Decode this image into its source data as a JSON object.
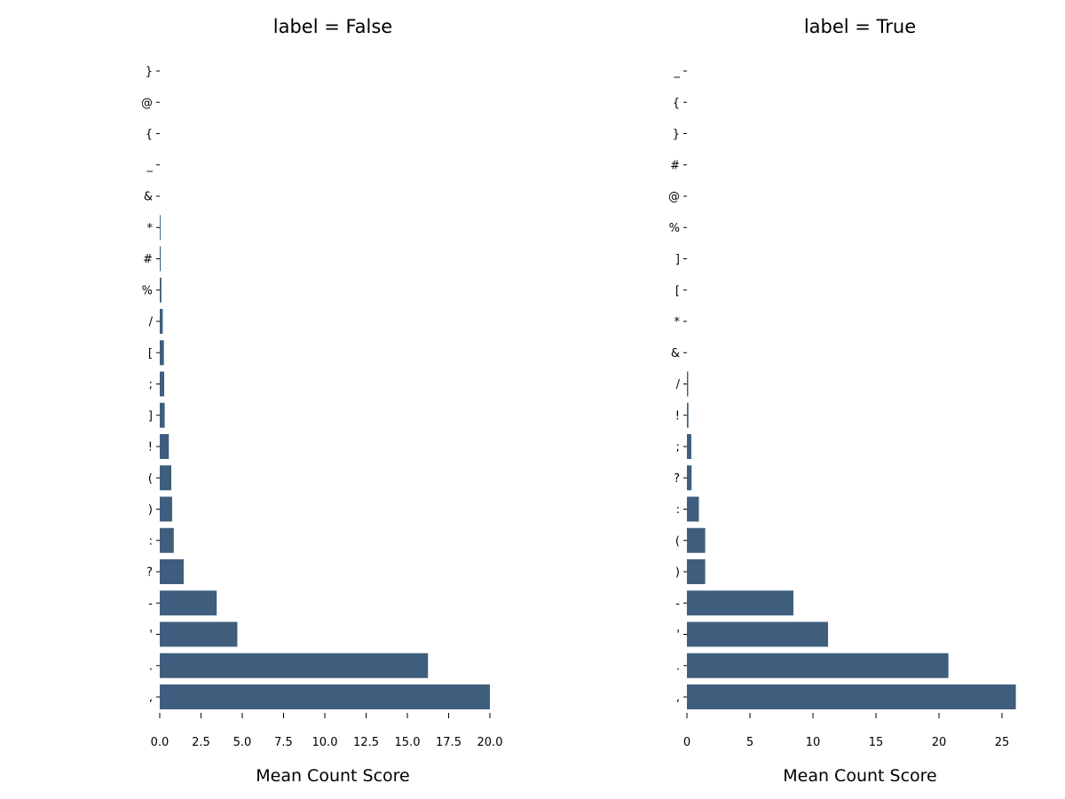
{
  "chart_data": [
    {
      "type": "bar",
      "orientation": "horizontal",
      "title": "label = False",
      "xlabel": "Mean Count Score",
      "ylabel": "",
      "xlim": [
        0,
        20.0
      ],
      "xticks": [
        "0.0",
        "2.5",
        "5.0",
        "7.5",
        "10.0",
        "12.5",
        "15.0",
        "17.5",
        "20.0"
      ],
      "xtick_values": [
        0,
        2.5,
        5,
        7.5,
        10,
        12.5,
        15,
        17.5,
        20
      ],
      "categories": [
        "}",
        "@",
        "{",
        "_",
        "&",
        "*",
        "#",
        "%",
        "/",
        "[",
        ";",
        "]",
        "!",
        "(",
        ")",
        ":",
        "?",
        "-",
        "'",
        ".",
        ","
      ],
      "values": [
        0,
        0,
        0,
        0,
        0,
        0.05,
        0.06,
        0.1,
        0.18,
        0.25,
        0.27,
        0.3,
        0.55,
        0.7,
        0.75,
        0.85,
        1.45,
        3.45,
        4.7,
        16.25,
        20.0
      ],
      "grid": false,
      "bar_color": "#3f5e7e"
    },
    {
      "type": "bar",
      "orientation": "horizontal",
      "title": "label = True",
      "xlabel": "Mean Count Score",
      "ylabel": "",
      "xlim": [
        0,
        25
      ],
      "xticks": [
        "0",
        "5",
        "10",
        "15",
        "20",
        "25"
      ],
      "xtick_values": [
        0,
        5,
        10,
        15,
        20,
        25
      ],
      "categories": [
        "_",
        "{",
        "}",
        "#",
        "@",
        "%",
        "]",
        "[",
        "*",
        "&",
        "/",
        "!",
        ";",
        "?",
        ":",
        "(",
        ")",
        "-",
        "'",
        ".",
        ","
      ],
      "values": [
        0,
        0,
        0,
        0,
        0,
        0,
        0,
        0,
        0,
        0,
        0.1,
        0.12,
        0.35,
        0.37,
        0.95,
        1.45,
        1.45,
        8.45,
        11.2,
        20.75,
        26.1
      ],
      "grid": false,
      "bar_color": "#3f5e7e"
    }
  ]
}
